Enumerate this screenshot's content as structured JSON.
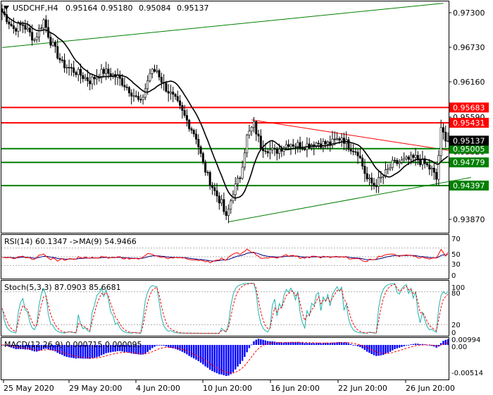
{
  "header": {
    "arrow_icon": "triangle-down-icon",
    "symbol": "USDCHF,H4",
    "ohlc": [
      "0.95164",
      "0.95180",
      "0.95084",
      "0.95137"
    ]
  },
  "colors": {
    "bull_candle": "#ffffff",
    "bear_candle": "#000000",
    "red_level": "#ff0000",
    "green_level": "#008000",
    "price_label_bg": "#000000",
    "rsi_line": "#000080",
    "rsi_ma": "#ff0000",
    "stoch_main": "#20b2aa",
    "stoch_signal": "#ff0000",
    "macd_hist": "#0000ff",
    "macd_signal": "#ff0000"
  },
  "chart_data": [
    {
      "type": "candlestick",
      "title": "USDCHF,H4",
      "ylim": [
        0.9362,
        0.9743
      ],
      "y_ticks": [
        "0.97300",
        "0.96730",
        "0.96160",
        "0.95590",
        "0.95020",
        "0.94450",
        "0.93870"
      ],
      "x_ticks": [
        "25 May 2020",
        "29 May 20:00",
        "4 Jun 20:00",
        "10 Jun 20:00",
        "16 Jun 20:00",
        "22 Jun 20:00",
        "26 Jun 20:00"
      ],
      "current_price": "0.95137",
      "levels": [
        {
          "value": 0.95683,
          "label": "0.95683",
          "color": "red"
        },
        {
          "value": 0.95431,
          "label": "0.95431",
          "color": "red"
        },
        {
          "value": 0.95005,
          "label": "0.95005",
          "color": "green"
        },
        {
          "value": 0.94779,
          "label": "0.94779",
          "color": "green"
        },
        {
          "value": 0.94397,
          "label": "0.94397",
          "color": "green"
        }
      ],
      "anchors": [
        [
          0,
          0.9726
        ],
        [
          5,
          0.9698
        ],
        [
          9,
          0.9705
        ],
        [
          14,
          0.968
        ],
        [
          18,
          0.9712
        ],
        [
          21,
          0.9677
        ],
        [
          26,
          0.964
        ],
        [
          32,
          0.9627
        ],
        [
          38,
          0.9612
        ],
        [
          44,
          0.9628
        ],
        [
          50,
          0.9618
        ],
        [
          55,
          0.9598
        ],
        [
          60,
          0.9575
        ],
        [
          64,
          0.9625
        ],
        [
          67,
          0.963
        ],
        [
          70,
          0.9605
        ],
        [
          75,
          0.958
        ],
        [
          78,
          0.956
        ],
        [
          81,
          0.954
        ],
        [
          84,
          0.952
        ],
        [
          87,
          0.9475
        ],
        [
          89,
          0.9455
        ],
        [
          92,
          0.943
        ],
        [
          95,
          0.941
        ],
        [
          97,
          0.9385
        ],
        [
          100,
          0.943
        ],
        [
          103,
          0.9455
        ],
        [
          106,
          0.952
        ],
        [
          109,
          0.954
        ],
        [
          112,
          0.9505
        ],
        [
          118,
          0.9495
        ],
        [
          124,
          0.951
        ],
        [
          130,
          0.9505
        ],
        [
          136,
          0.951
        ],
        [
          142,
          0.9508
        ],
        [
          147,
          0.952
        ],
        [
          150,
          0.9505
        ],
        [
          154,
          0.9495
        ],
        [
          158,
          0.945
        ],
        [
          161,
          0.944
        ],
        [
          165,
          0.9455
        ],
        [
          169,
          0.9475
        ],
        [
          174,
          0.948
        ],
        [
          179,
          0.9485
        ],
        [
          183,
          0.9475
        ],
        [
          186,
          0.9465
        ],
        [
          188,
          0.945
        ],
        [
          190,
          0.953
        ],
        [
          193,
          0.9514
        ]
      ],
      "trendlines": [
        {
          "color": "green",
          "from": [
            0,
            0.9667
          ],
          "to": [
            191,
            0.974
          ]
        },
        {
          "color": "red",
          "from": [
            108,
            0.9548
          ],
          "to": [
            203,
            0.9492
          ]
        },
        {
          "color": "green",
          "from": [
            98,
            0.938
          ],
          "to": [
            203,
            0.9453
          ]
        }
      ]
    },
    {
      "type": "line",
      "title": "RSI(14) 60.1347 ->MA(9) 54.9466",
      "ylim": [
        0,
        100
      ],
      "y_ticks": [
        "70",
        "50",
        "30",
        "0"
      ],
      "levels": [
        70,
        50,
        30
      ],
      "series": [
        {
          "name": "RSI(14)",
          "last": 60.1347
        },
        {
          "name": "MA(9)",
          "last": 54.9466
        }
      ]
    },
    {
      "type": "line",
      "title": "Stoch(5,3,3) 87.0903 85.6681",
      "ylim": [
        0,
        100
      ],
      "y_ticks": [
        "100",
        "80",
        "20",
        "0"
      ],
      "levels": [
        80,
        20
      ],
      "series": [
        {
          "name": "%K",
          "last": 87.0903
        },
        {
          "name": "%D",
          "last": 85.6681
        }
      ]
    },
    {
      "type": "bar",
      "title": "MACD(12,26,9) 0.000715 0.000095",
      "y_ticks": [
        "0.00994",
        "0.00",
        "-0.00514"
      ],
      "series": [
        {
          "name": "MACD",
          "last": 0.000715
        },
        {
          "name": "Signal",
          "last": 9.5e-05
        }
      ]
    }
  ]
}
